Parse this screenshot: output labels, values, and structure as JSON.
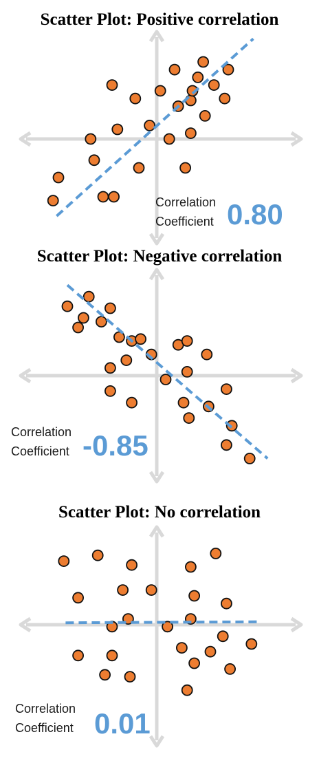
{
  "colors": {
    "axis": "#d9d9d9",
    "point_fill": "#ed7d31",
    "point_stroke": "#111111",
    "trend": "#5b9bd5",
    "coefficient": "#5b9bd5"
  },
  "chart_data": [
    {
      "type": "scatter",
      "title": "Scatter Plot: Positive correlation",
      "coefficient_label_line1": "Correlation",
      "coefficient_label_line2": "Coefficient",
      "coefficient": "0.80",
      "points": [
        [
          -5.5,
          -2.0
        ],
        [
          -5.8,
          -3.2
        ],
        [
          -3.5,
          -1.1
        ],
        [
          -2.4,
          -3.0
        ],
        [
          -3.0,
          -3.0
        ],
        [
          -3.7,
          0.0
        ],
        [
          -2.2,
          0.5
        ],
        [
          -2.5,
          2.8
        ],
        [
          -1.2,
          2.1
        ],
        [
          -1.0,
          -1.5
        ],
        [
          -0.4,
          0.7
        ],
        [
          0.2,
          2.5
        ],
        [
          0.7,
          0.0
        ],
        [
          1.2,
          1.7
        ],
        [
          1.0,
          3.6
        ],
        [
          1.6,
          -1.5
        ],
        [
          1.9,
          0.3
        ],
        [
          1.9,
          2.0
        ],
        [
          2.0,
          2.5
        ],
        [
          2.3,
          3.2
        ],
        [
          2.6,
          4.0
        ],
        [
          2.7,
          1.2
        ],
        [
          3.2,
          2.8
        ],
        [
          3.8,
          2.1
        ],
        [
          4.0,
          3.6
        ]
      ],
      "trendline": [
        [
          -5.6,
          -4.0
        ],
        [
          5.4,
          5.2
        ]
      ]
    },
    {
      "type": "scatter",
      "title": "Scatter Plot: Negative correlation",
      "coefficient_label_line1": "Correlation",
      "coefficient_label_line2": "Coefficient",
      "coefficient": "-0.85",
      "points": [
        [
          -5.0,
          3.6
        ],
        [
          -4.1,
          3.0
        ],
        [
          -3.8,
          4.1
        ],
        [
          -4.4,
          2.5
        ],
        [
          -2.6,
          3.5
        ],
        [
          -3.1,
          2.8
        ],
        [
          -2.1,
          2.0
        ],
        [
          -1.4,
          1.8
        ],
        [
          -0.9,
          1.9
        ],
        [
          -2.6,
          0.4
        ],
        [
          -1.7,
          0.8
        ],
        [
          -2.6,
          -0.8
        ],
        [
          -1.4,
          -1.4
        ],
        [
          -0.3,
          1.1
        ],
        [
          0.5,
          -0.2
        ],
        [
          1.2,
          1.6
        ],
        [
          1.7,
          1.8
        ],
        [
          1.7,
          0.2
        ],
        [
          2.8,
          1.1
        ],
        [
          1.5,
          -1.4
        ],
        [
          1.8,
          -2.2
        ],
        [
          2.9,
          -1.6
        ],
        [
          3.9,
          -0.7
        ],
        [
          4.2,
          -2.6
        ],
        [
          3.9,
          -3.6
        ],
        [
          5.2,
          -4.3
        ]
      ],
      "trendline": [
        [
          -5.0,
          4.7
        ],
        [
          6.2,
          -4.3
        ]
      ]
    },
    {
      "type": "scatter",
      "title": "Scatter Plot: No correlation",
      "coefficient_label_line1": "Correlation",
      "coefficient_label_line2": "Coefficient",
      "coefficient": "0.01",
      "points": [
        [
          -5.2,
          3.3
        ],
        [
          -3.3,
          3.6
        ],
        [
          -1.4,
          3.1
        ],
        [
          -4.4,
          1.4
        ],
        [
          -1.9,
          1.8
        ],
        [
          -0.3,
          1.8
        ],
        [
          -2.5,
          -0.1
        ],
        [
          -1.6,
          0.3
        ],
        [
          0.6,
          -0.1
        ],
        [
          1.9,
          3.0
        ],
        [
          3.3,
          3.7
        ],
        [
          2.1,
          1.5
        ],
        [
          3.9,
          1.1
        ],
        [
          1.9,
          0.3
        ],
        [
          3.7,
          -0.6
        ],
        [
          -4.4,
          -1.6
        ],
        [
          -2.5,
          -1.6
        ],
        [
          -2.9,
          -2.6
        ],
        [
          -1.5,
          -2.7
        ],
        [
          1.4,
          -1.2
        ],
        [
          2.1,
          -2.0
        ],
        [
          3.0,
          -1.4
        ],
        [
          4.1,
          -2.3
        ],
        [
          5.3,
          -1.0
        ],
        [
          1.7,
          -3.4
        ]
      ],
      "trendline": [
        [
          -5.1,
          0.1
        ],
        [
          5.6,
          0.15
        ]
      ]
    }
  ]
}
